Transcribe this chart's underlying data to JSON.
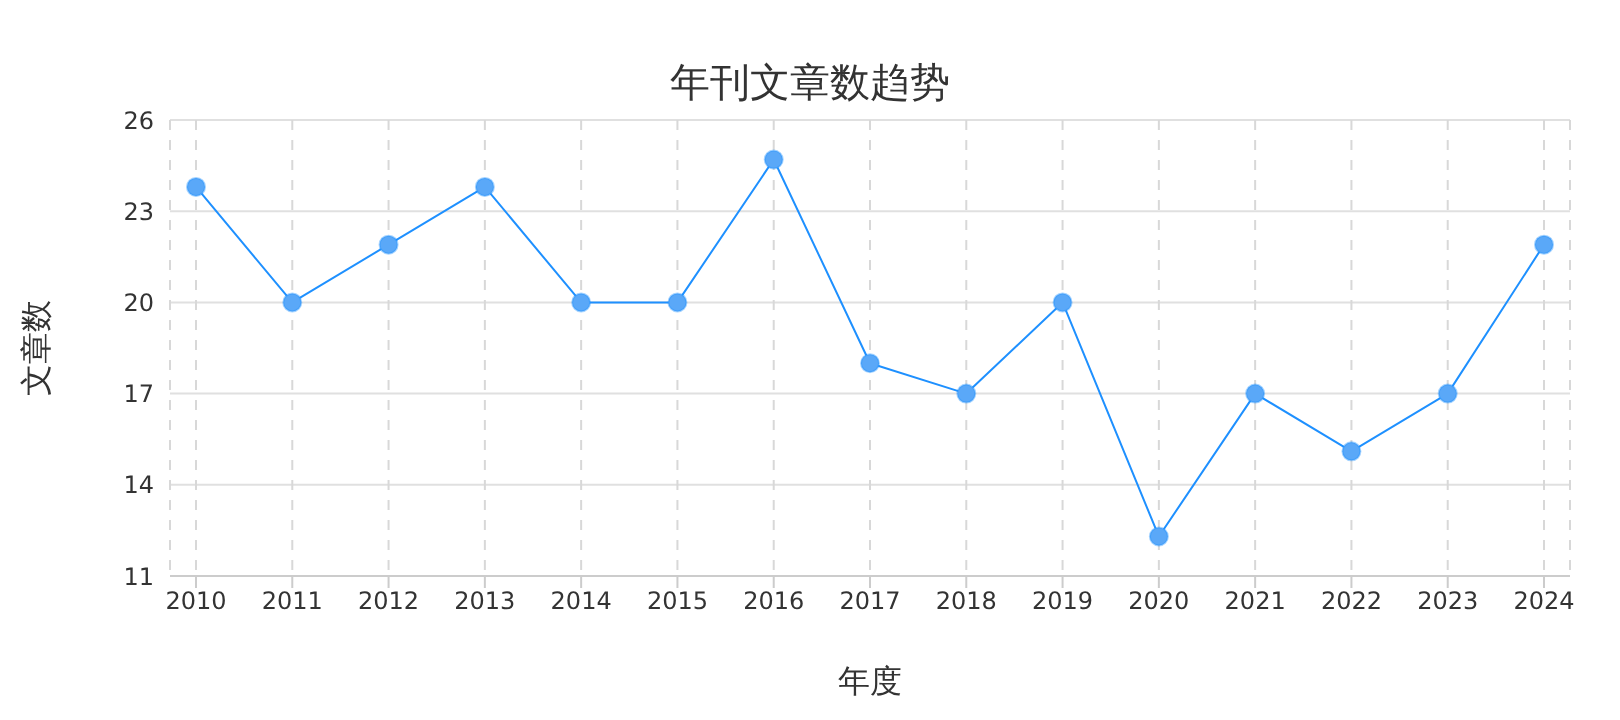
{
  "chart_data": {
    "type": "line",
    "title": "年刊文章数趋势",
    "xlabel": "年度",
    "ylabel": "文章数",
    "categories": [
      "2010",
      "2011",
      "2012",
      "2013",
      "2014",
      "2015",
      "2016",
      "2017",
      "2018",
      "2019",
      "2020",
      "2021",
      "2022",
      "2023",
      "2024"
    ],
    "series": [
      {
        "color": "#1e90ff",
        "values": [
          23.8,
          20,
          21.9,
          23.8,
          20,
          20,
          24.7,
          18,
          17,
          20,
          12.3,
          17,
          15.1,
          17,
          21.9
        ]
      }
    ],
    "ylim": [
      11,
      26
    ],
    "yticks": [
      11,
      14,
      17,
      20,
      23,
      26
    ],
    "grid": true,
    "marker": "circle",
    "line_style": "solid"
  }
}
